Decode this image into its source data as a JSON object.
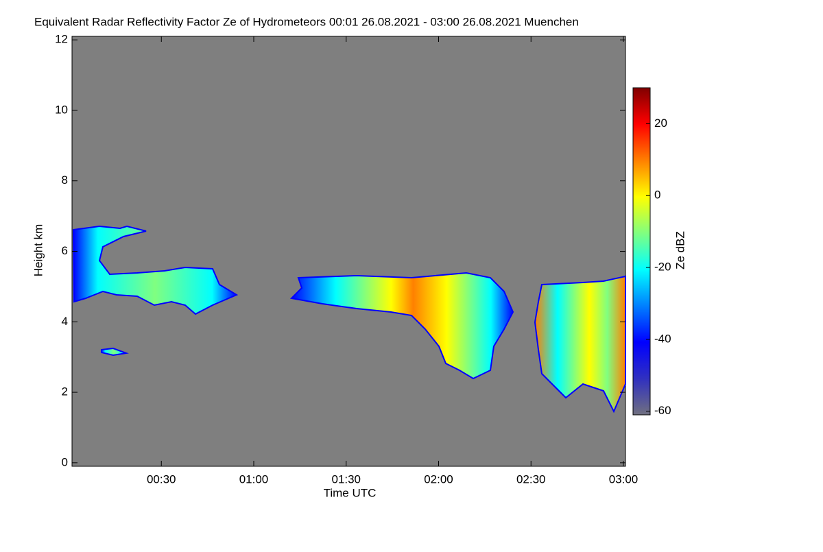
{
  "chart_data": {
    "type": "time-height",
    "title": "Equivalent Radar Reflectivity Factor Ze of Hydrometeors   00:01 26.08.2021 - 03:00 26.08.2021 Muenchen",
    "x_label": "Time UTC",
    "y_label": "Height km",
    "colorbar_label": "Ze dBZ",
    "xlim": [
      "00:01",
      "03:00"
    ],
    "xticks": [
      "00:30",
      "01:00",
      "01:30",
      "02:00",
      "02:30",
      "03:00"
    ],
    "ylim": [
      -0.1,
      12.1
    ],
    "yticks": [
      0,
      2,
      4,
      6,
      8,
      10,
      12
    ],
    "clim": [
      -61,
      30
    ],
    "cticks": [
      -60,
      -40,
      -20,
      0,
      20
    ],
    "background": "#7f7f7f",
    "colormap": [
      "#707080",
      "#3030c0",
      "#0000ff",
      "#0080ff",
      "#00ffff",
      "#80ff80",
      "#ffff00",
      "#ff8000",
      "#ff0000",
      "#800000"
    ]
  }
}
